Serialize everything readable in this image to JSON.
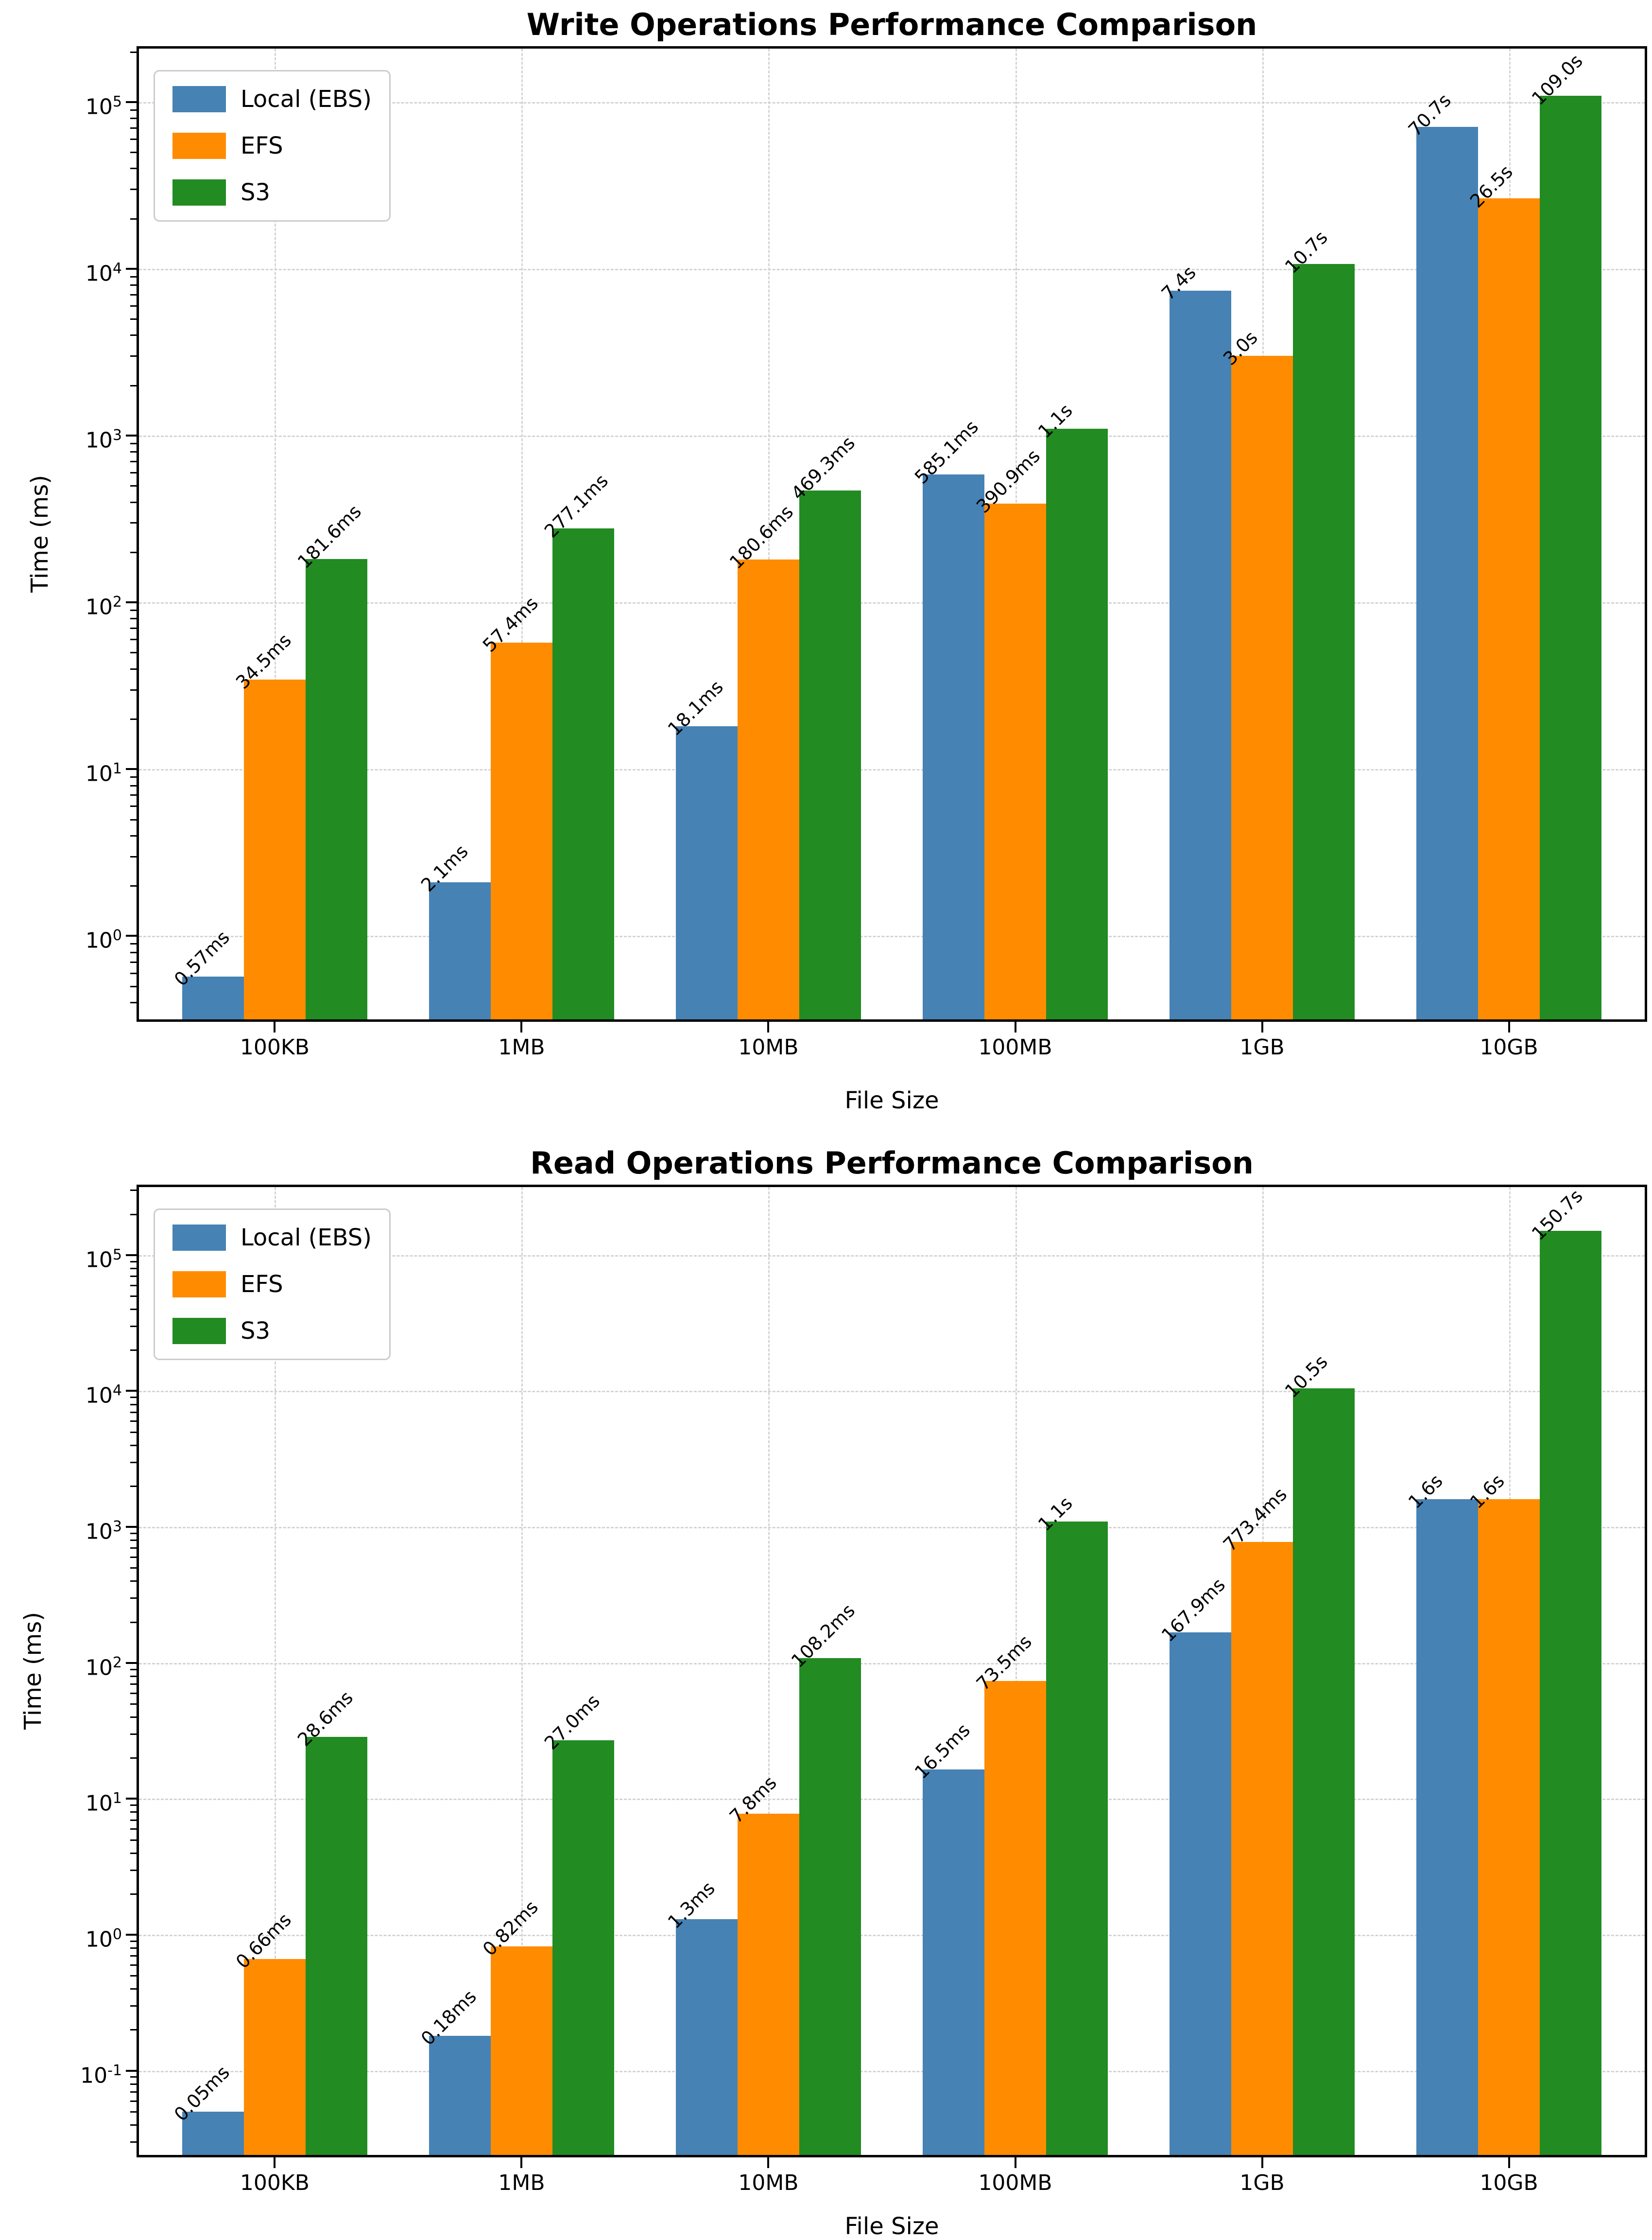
{
  "colors": {
    "local_ebs": "#4682B4",
    "efs": "#FF8C00",
    "s3": "#228B22",
    "grid": "#d4d4d4",
    "spine": "#000000"
  },
  "legend": {
    "items": [
      {
        "label": "Local (EBS)",
        "color": "#4682B4"
      },
      {
        "label": "EFS",
        "color": "#FF8C00"
      },
      {
        "label": "S3",
        "color": "#228B22"
      }
    ]
  },
  "chart_data": [
    {
      "type": "bar",
      "title": "Write Operations Performance Comparison",
      "xlabel": "File Size",
      "ylabel": "Time (ms)",
      "yscale": "log",
      "grid": true,
      "legend_position": "upper left",
      "categories": [
        "100KB",
        "1MB",
        "10MB",
        "100MB",
        "1GB",
        "10GB"
      ],
      "ytick_exponents": [
        0,
        1,
        2,
        3,
        4,
        5
      ],
      "ylim_log10": [
        -0.5,
        5.32
      ],
      "series": [
        {
          "name": "Local (EBS)",
          "color": "#4682B4",
          "values_ms": [
            0.57,
            2.1,
            18.1,
            585.1,
            7400,
            70700
          ],
          "labels": [
            "0.57ms",
            "2.1ms",
            "18.1ms",
            "585.1ms",
            "7.4s",
            "70.7s"
          ]
        },
        {
          "name": "EFS",
          "color": "#FF8C00",
          "values_ms": [
            34.5,
            57.4,
            180.6,
            390.9,
            3000,
            26500
          ],
          "labels": [
            "34.5ms",
            "57.4ms",
            "180.6ms",
            "390.9ms",
            "3.0s",
            "26.5s"
          ]
        },
        {
          "name": "S3",
          "color": "#228B22",
          "values_ms": [
            181.6,
            277.1,
            469.3,
            1100,
            10700,
            109000
          ],
          "labels": [
            "181.6ms",
            "277.1ms",
            "469.3ms",
            "1.1s",
            "10.7s",
            "109.0s"
          ]
        }
      ]
    },
    {
      "type": "bar",
      "title": "Read Operations Performance Comparison",
      "xlabel": "File Size",
      "ylabel": "Time (ms)",
      "yscale": "log",
      "grid": true,
      "legend_position": "upper left",
      "categories": [
        "100KB",
        "1MB",
        "10MB",
        "100MB",
        "1GB",
        "10GB"
      ],
      "ytick_exponents": [
        -1,
        0,
        1,
        2,
        3,
        4,
        5
      ],
      "ylim_log10": [
        -1.62,
        5.5
      ],
      "series": [
        {
          "name": "Local (EBS)",
          "color": "#4682B4",
          "values_ms": [
            0.05,
            0.18,
            1.3,
            16.5,
            167.9,
            1600
          ],
          "labels": [
            "0.05ms",
            "0.18ms",
            "1.3ms",
            "16.5ms",
            "167.9ms",
            "1.6s"
          ]
        },
        {
          "name": "EFS",
          "color": "#FF8C00",
          "values_ms": [
            0.66,
            0.82,
            7.8,
            73.5,
            773.4,
            1600
          ],
          "labels": [
            "0.66ms",
            "0.82ms",
            "7.8ms",
            "73.5ms",
            "773.4ms",
            "1.6s"
          ]
        },
        {
          "name": "S3",
          "color": "#228B22",
          "values_ms": [
            28.6,
            27.0,
            108.2,
            1100,
            10500,
            150700
          ],
          "labels": [
            "28.6ms",
            "27.0ms",
            "108.2ms",
            "1.1s",
            "10.5s",
            "150.7s"
          ]
        }
      ]
    }
  ]
}
